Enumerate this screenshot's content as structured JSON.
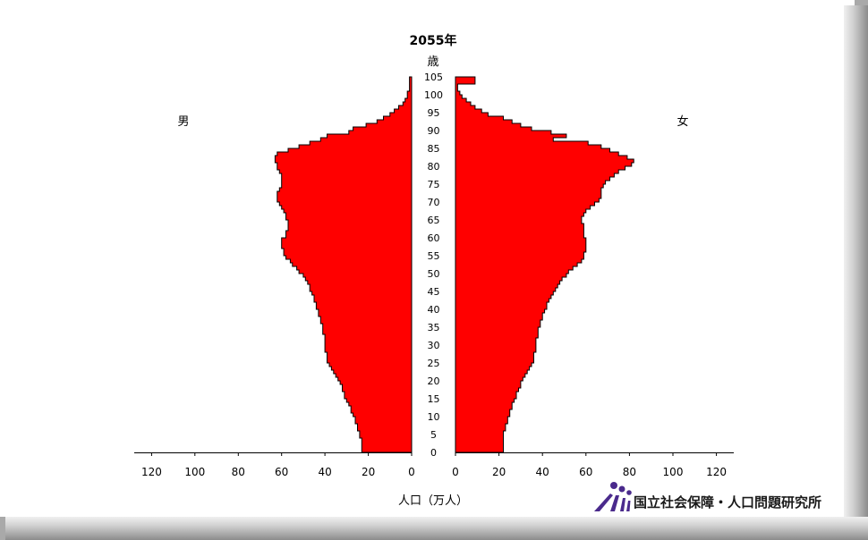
{
  "chart_data": {
    "type": "bar",
    "title": "2055年",
    "age_unit": "歳",
    "xlabel": "人口（万人）",
    "left_label": "男",
    "right_label": "女",
    "bar_color": "#ff0000",
    "xlim": [
      0,
      128
    ],
    "xticks": [
      "0",
      "20",
      "40",
      "60",
      "80",
      "100",
      "120"
    ],
    "yticks": [
      "0",
      "5",
      "10",
      "15",
      "20",
      "25",
      "30",
      "35",
      "40",
      "45",
      "50",
      "55",
      "60",
      "65",
      "70",
      "75",
      "80",
      "85",
      "90",
      "95",
      "100",
      "105"
    ],
    "series": [
      {
        "name": "男",
        "values": [
          23,
          23,
          23,
          23,
          24,
          24,
          25,
          25,
          26,
          26,
          27,
          28,
          28,
          29,
          30,
          31,
          31,
          32,
          32,
          33,
          34,
          35,
          36,
          37,
          38,
          39,
          39,
          39,
          40,
          40,
          40,
          40,
          40,
          41,
          41,
          41,
          42,
          42,
          43,
          43,
          44,
          44,
          45,
          45,
          46,
          47,
          47,
          48,
          49,
          50,
          52,
          53,
          55,
          56,
          58,
          59,
          59,
          60,
          60,
          60,
          58,
          58,
          57,
          57,
          57,
          58,
          58,
          59,
          60,
          61,
          62,
          62,
          62,
          61,
          60,
          60,
          60,
          60,
          61,
          62,
          62,
          63,
          63,
          62,
          57,
          52,
          47,
          42,
          39,
          29,
          27,
          21,
          16,
          13,
          10,
          8,
          6,
          4,
          3,
          2,
          2,
          1,
          1,
          1,
          1
        ]
      },
      {
        "name": "女",
        "values": [
          22,
          22,
          22,
          22,
          22,
          22,
          23,
          23,
          24,
          24,
          25,
          25,
          26,
          26,
          27,
          28,
          28,
          29,
          30,
          30,
          31,
          32,
          33,
          34,
          35,
          36,
          36,
          36,
          37,
          37,
          37,
          37,
          38,
          38,
          38,
          39,
          39,
          40,
          40,
          41,
          42,
          42,
          43,
          44,
          45,
          46,
          47,
          48,
          49,
          51,
          52,
          54,
          56,
          58,
          59,
          59,
          60,
          60,
          60,
          60,
          59,
          59,
          59,
          59,
          58,
          58,
          59,
          60,
          62,
          64,
          66,
          67,
          67,
          67,
          68,
          69,
          71,
          73,
          75,
          78,
          81,
          82,
          79,
          75,
          71,
          67,
          61,
          45,
          51,
          44,
          35,
          30,
          26,
          22,
          15,
          12,
          9,
          7,
          5,
          3,
          2,
          1,
          1,
          9,
          9
        ]
      }
    ]
  },
  "branding": {
    "logo_text": "国立社会保障・人口問題研究所"
  }
}
